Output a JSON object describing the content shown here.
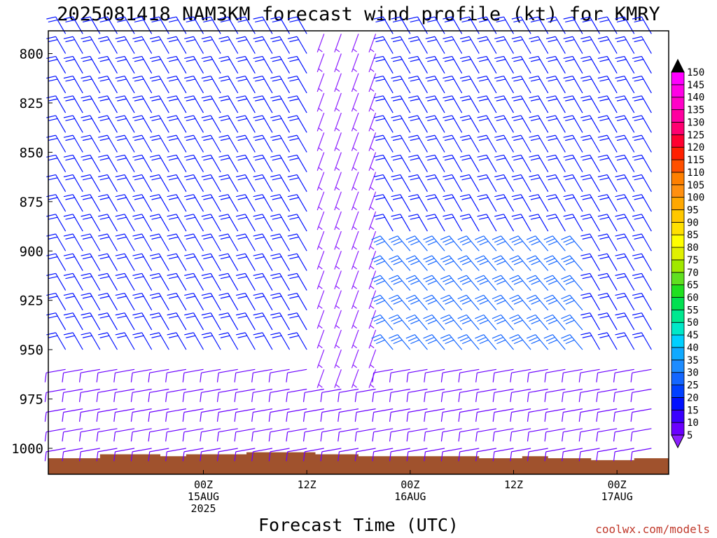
{
  "title": "2025081418 NAM3KM forecast wind profile (kt) for KMRY",
  "credit": "coolwx.com/models",
  "chart_data": {
    "type": "wind-barb-profile",
    "title": "2025081418 NAM3KM forecast wind profile (kt) for KMRY",
    "xlabel": "Forecast Time (UTC)",
    "ylabel": "",
    "y_axis": {
      "ticks": [
        800,
        825,
        850,
        875,
        900,
        925,
        950,
        975,
        1000
      ],
      "range": [
        789,
        1013
      ],
      "inverted": true
    },
    "x_axis": {
      "range_hours": [
        -18,
        54
      ],
      "ticks": [
        {
          "hour": 0,
          "lines": [
            "00Z",
            "15AUG",
            "2025"
          ]
        },
        {
          "hour": 12,
          "lines": [
            "12Z"
          ]
        },
        {
          "hour": 24,
          "lines": [
            "00Z",
            "16AUG"
          ]
        },
        {
          "hour": 36,
          "lines": [
            "12Z"
          ]
        },
        {
          "hour": 48,
          "lines": [
            "00Z",
            "17AUG"
          ]
        }
      ]
    },
    "wind_units": "kt",
    "colorbar": {
      "levels": [
        5,
        10,
        15,
        20,
        25,
        30,
        35,
        40,
        45,
        50,
        55,
        60,
        65,
        70,
        75,
        80,
        85,
        90,
        95,
        100,
        105,
        110,
        115,
        120,
        125,
        130,
        135,
        140,
        145,
        150
      ],
      "colors": [
        "#8c1eff",
        "#6a00ff",
        "#3a00ff",
        "#0010ff",
        "#0040ff",
        "#1466ff",
        "#1e8cff",
        "#10aaff",
        "#00d0ff",
        "#00e8c8",
        "#00e890",
        "#00e050",
        "#20e020",
        "#60e020",
        "#a0e800",
        "#e0f000",
        "#ffff00",
        "#ffe000",
        "#ffc800",
        "#ffa800",
        "#ff9010",
        "#ff8000",
        "#ff5000",
        "#ff2000",
        "#ff0030",
        "#ff0070",
        "#ff00a0",
        "#ff00c8",
        "#ff00e6",
        "#ff00ff"
      ],
      "under_color": "#8c1eff",
      "over_color": "#000000"
    },
    "sample_times": [
      -16,
      -14,
      -12,
      -10,
      -8,
      -6,
      -4,
      -2,
      0,
      2,
      4,
      6,
      8,
      10,
      12,
      14,
      16,
      18,
      20,
      22,
      24,
      26,
      28,
      30,
      32,
      34,
      36,
      38,
      40,
      42,
      44,
      46,
      48,
      50,
      52
    ],
    "sample_levels": [
      790,
      800,
      810,
      820,
      830,
      840,
      850,
      860,
      870,
      880,
      890,
      900,
      910,
      920,
      930,
      940,
      950,
      960,
      970,
      980,
      990,
      1000
    ],
    "regimes": [
      {
        "name": "upper",
        "wind_dir_deg": 330,
        "speed_kt": 20
      },
      {
        "name": "calm-column",
        "hours": [
          14,
          20
        ],
        "wind_dir_deg": 200,
        "speed_kt": 5
      },
      {
        "name": "lower",
        "levels": [
          955,
          1000
        ],
        "wind_dir_deg": 260,
        "speed_kt": 10
      },
      {
        "name": "core",
        "hours": [
          22,
          44
        ],
        "levels": [
          900,
          950
        ],
        "wind_dir_deg": 320,
        "speed_kt": 30
      }
    ],
    "terrain": {
      "color": "#a0522d",
      "top_pressure": [
        [
          -18,
          1005
        ],
        [
          -13,
          1005
        ],
        [
          -12,
          1003
        ],
        [
          -6,
          1003
        ],
        [
          -5,
          1004
        ],
        [
          -3,
          1004
        ],
        [
          -2,
          1003
        ],
        [
          4,
          1003
        ],
        [
          5,
          1002
        ],
        [
          12,
          1002
        ],
        [
          13,
          1003
        ],
        [
          17,
          1003
        ],
        [
          18,
          1004
        ],
        [
          31,
          1004
        ],
        [
          32,
          1005
        ],
        [
          36,
          1005
        ],
        [
          37,
          1004
        ],
        [
          39,
          1004
        ],
        [
          40,
          1005
        ],
        [
          44,
          1005
        ],
        [
          45,
          1006
        ],
        [
          49,
          1006
        ],
        [
          50,
          1005
        ],
        [
          54,
          1005
        ]
      ]
    }
  }
}
